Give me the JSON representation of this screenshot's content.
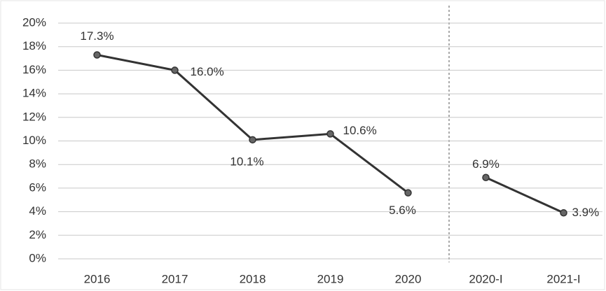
{
  "chart_data": {
    "type": "line",
    "categories": [
      "2016",
      "2017",
      "2018",
      "2019",
      "2020",
      "2020-I",
      "2021-I"
    ],
    "series": [
      {
        "color": "#333333",
        "values": [
          17.3,
          16.0,
          10.1,
          10.6,
          5.6,
          null,
          null
        ],
        "value_labels": [
          "17.3%",
          "16.0%",
          "10.1%",
          "10.6%",
          "5.6%",
          null,
          null
        ]
      },
      {
        "color": "#333333",
        "values": [
          null,
          null,
          null,
          null,
          null,
          6.9,
          3.9
        ],
        "value_labels": [
          null,
          null,
          null,
          null,
          null,
          "6.9%",
          "3.9%"
        ]
      }
    ],
    "ylim": [
      0,
      20
    ],
    "yticks": [
      {
        "value": 0,
        "label": "0%"
      },
      {
        "value": 2,
        "label": "2%"
      },
      {
        "value": 4,
        "label": "4%"
      },
      {
        "value": 6,
        "label": "6%"
      },
      {
        "value": 8,
        "label": "8%"
      },
      {
        "value": 10,
        "label": "10%"
      },
      {
        "value": 12,
        "label": "12%"
      },
      {
        "value": 14,
        "label": "14%"
      },
      {
        "value": 16,
        "label": "16%"
      },
      {
        "value": 18,
        "label": "18%"
      },
      {
        "value": 20,
        "label": "20%"
      }
    ],
    "grid": true
  }
}
